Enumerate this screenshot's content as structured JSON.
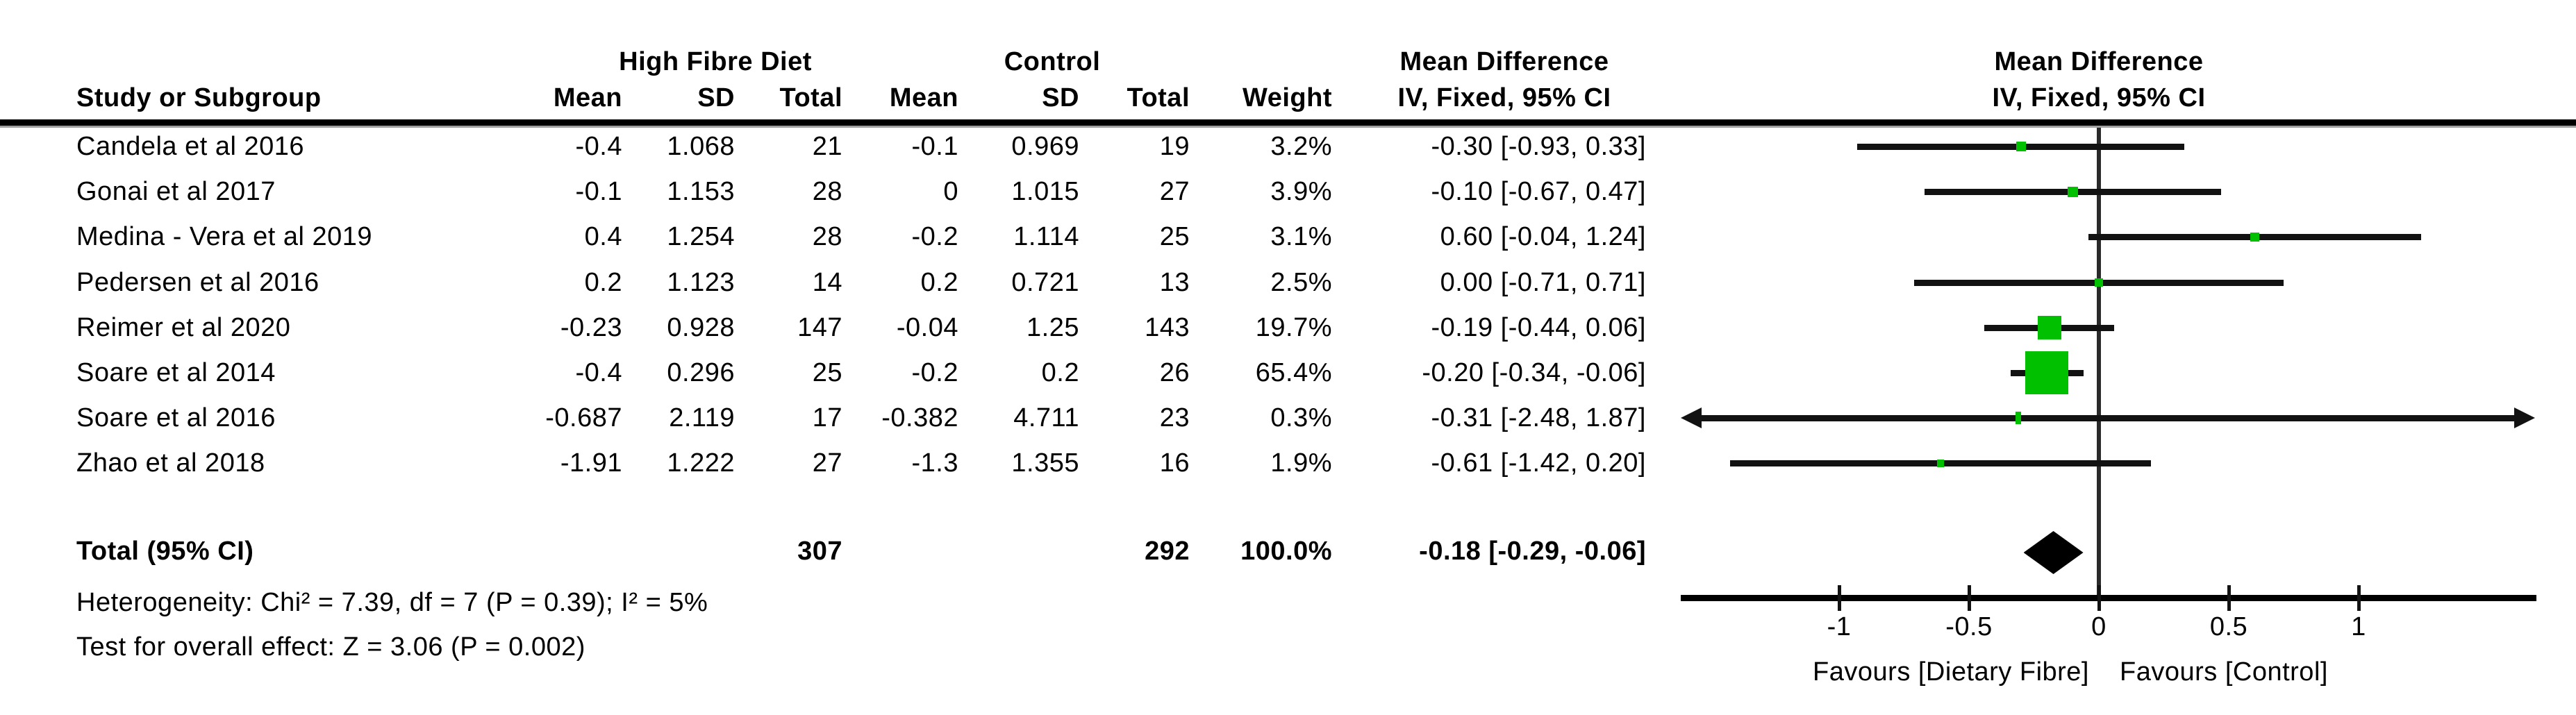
{
  "header": {
    "study_col": "Study or Subgroup",
    "group_treatment": "High Fibre Diet",
    "group_control": "Control",
    "mean_label": "Mean",
    "sd_label": "SD",
    "total_label": "Total",
    "weight_label": "Weight",
    "md_title": "Mean Difference",
    "md_subtitle": "IV, Fixed, 95% CI",
    "plot_md_title": "Mean Difference",
    "plot_md_subtitle": "IV, Fixed, 95% CI"
  },
  "chart_data": {
    "type": "forest",
    "effect_measure": "Mean Difference",
    "model": "IV, Fixed, 95% CI",
    "studies": [
      {
        "name": "Candela et al 2016",
        "t_mean": "-0.4",
        "t_sd": "1.068",
        "t_n": "21",
        "c_mean": "-0.1",
        "c_sd": "0.969",
        "c_n": "19",
        "weight": "3.2%",
        "w": 3.2,
        "ci_text": "-0.30 [-0.93, 0.33]",
        "md": -0.3,
        "lo": -0.93,
        "hi": 0.33
      },
      {
        "name": "Gonai et al 2017",
        "t_mean": "-0.1",
        "t_sd": "1.153",
        "t_n": "28",
        "c_mean": "0",
        "c_sd": "1.015",
        "c_n": "27",
        "weight": "3.9%",
        "w": 3.9,
        "ci_text": "-0.10 [-0.67, 0.47]",
        "md": -0.1,
        "lo": -0.67,
        "hi": 0.47
      },
      {
        "name": "Medina - Vera et al 2019",
        "t_mean": "0.4",
        "t_sd": "1.254",
        "t_n": "28",
        "c_mean": "-0.2",
        "c_sd": "1.114",
        "c_n": "25",
        "weight": "3.1%",
        "w": 3.1,
        "ci_text": "0.60 [-0.04, 1.24]",
        "md": 0.6,
        "lo": -0.04,
        "hi": 1.24
      },
      {
        "name": "Pedersen et al 2016",
        "t_mean": "0.2",
        "t_sd": "1.123",
        "t_n": "14",
        "c_mean": "0.2",
        "c_sd": "0.721",
        "c_n": "13",
        "weight": "2.5%",
        "w": 2.5,
        "ci_text": "0.00 [-0.71, 0.71]",
        "md": 0.0,
        "lo": -0.71,
        "hi": 0.71
      },
      {
        "name": "Reimer et al 2020",
        "t_mean": "-0.23",
        "t_sd": "0.928",
        "t_n": "147",
        "c_mean": "-0.04",
        "c_sd": "1.25",
        "c_n": "143",
        "weight": "19.7%",
        "w": 19.7,
        "ci_text": "-0.19 [-0.44, 0.06]",
        "md": -0.19,
        "lo": -0.44,
        "hi": 0.06
      },
      {
        "name": "Soare et al 2014",
        "t_mean": "-0.4",
        "t_sd": "0.296",
        "t_n": "25",
        "c_mean": "-0.2",
        "c_sd": "0.2",
        "c_n": "26",
        "weight": "65.4%",
        "w": 65.4,
        "ci_text": "-0.20 [-0.34, -0.06]",
        "md": -0.2,
        "lo": -0.34,
        "hi": -0.06
      },
      {
        "name": "Soare et al 2016",
        "t_mean": "-0.687",
        "t_sd": "2.119",
        "t_n": "17",
        "c_mean": "-0.382",
        "c_sd": "4.711",
        "c_n": "23",
        "weight": "0.3%",
        "w": 0.3,
        "ci_text": "-0.31 [-2.48, 1.87]",
        "md": -0.31,
        "lo": -2.48,
        "hi": 1.87
      },
      {
        "name": "Zhao et al 2018",
        "t_mean": "-1.91",
        "t_sd": "1.222",
        "t_n": "27",
        "c_mean": "-1.3",
        "c_sd": "1.355",
        "c_n": "16",
        "weight": "1.9%",
        "w": 1.9,
        "ci_text": "-0.61 [-1.42, 0.20]",
        "md": -0.61,
        "lo": -1.42,
        "hi": 0.2
      }
    ],
    "total": {
      "label": "Total (95% CI)",
      "t_n": "307",
      "c_n": "292",
      "weight": "100.0%",
      "ci_text": "-0.18 [-0.29, -0.06]",
      "md": -0.18,
      "lo": -0.29,
      "hi": -0.06
    },
    "axis": {
      "min": -1.6,
      "max": 1.68,
      "ticks": [
        {
          "v": -1,
          "label": "-1"
        },
        {
          "v": -0.5,
          "label": "-0.5"
        },
        {
          "v": 0,
          "label": "0"
        },
        {
          "v": 0.5,
          "label": "0.5"
        },
        {
          "v": 1,
          "label": "1"
        }
      ]
    },
    "favours_left": "Favours [Dietary Fibre]",
    "favours_right": "Favours [Control]"
  },
  "footer": {
    "heterogeneity": "Heterogeneity: Chi² = 7.39, df = 7 (P = 0.39); I² = 5%",
    "overall_effect": "Test for overall effect: Z = 3.06 (P = 0.002)"
  },
  "colors": {
    "marker_green": "#00c000",
    "line_black": "#121212",
    "diamond_black": "#000000"
  }
}
